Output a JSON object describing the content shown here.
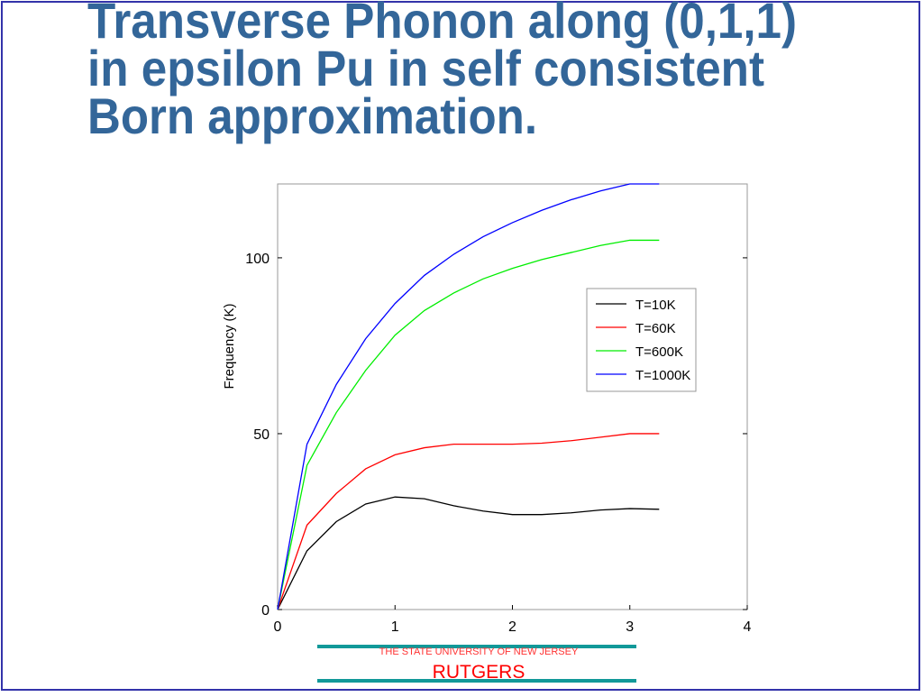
{
  "slide_title": [
    "Transverse Phonon along (0,1,1)",
    "in epsilon Pu in self consistent",
    "Born approximation."
  ],
  "chart_data": {
    "type": "line",
    "ylabel": "Frequency (K)",
    "x": [
      0,
      0.25,
      0.5,
      0.75,
      1,
      1.25,
      1.5,
      1.75,
      2,
      2.25,
      2.5,
      2.75,
      3,
      3.25
    ],
    "series": [
      {
        "name": "T=10K",
        "color": "#000000",
        "values": [
          0,
          16.7,
          25,
          30,
          32,
          31.5,
          29.5,
          28,
          27,
          27,
          27.5,
          28.3,
          28.7,
          28.5
        ]
      },
      {
        "name": "T=60K",
        "color": "#ff0000",
        "values": [
          0,
          24,
          33,
          40,
          44,
          46,
          47,
          47,
          47,
          47.3,
          48,
          49,
          50,
          50
        ]
      },
      {
        "name": "T=600K",
        "color": "#00ee00",
        "values": [
          0,
          41,
          56,
          68,
          78,
          85,
          90,
          94,
          97,
          99.5,
          101.5,
          103.5,
          105,
          105
        ]
      },
      {
        "name": "T=1000K",
        "color": "#0000ff",
        "values": [
          0,
          47,
          64,
          77,
          87,
          95,
          101,
          106,
          110,
          113.5,
          116.5,
          119,
          121,
          121
        ]
      }
    ],
    "xlim": [
      0,
      4
    ],
    "xticks": [
      0,
      1,
      2,
      3,
      4
    ],
    "ylim": [
      0,
      121
    ],
    "yticks": [
      0,
      50,
      100
    ],
    "legend": "right"
  },
  "footer": {
    "university": "THE STATE UNIVERSITY OF NEW JERSEY",
    "name": "RUTGERS"
  }
}
